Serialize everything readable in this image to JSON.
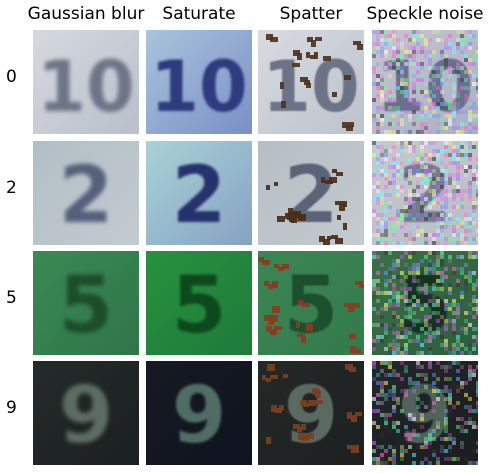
{
  "columns": [
    "Gaussian blur",
    "Saturate",
    "Spatter",
    "Speckle noise"
  ],
  "rows": [
    {
      "label": "0",
      "digit": "10",
      "cells": [
        {
          "bg": "#b9c0cb",
          "bg2": "#d5d9df",
          "fg": "#6e7488",
          "blur": 2.2,
          "speckle": 0,
          "spatter": false
        },
        {
          "bg": "#7b8fc6",
          "bg2": "#a9c4dc",
          "fg": "#2f3a7e",
          "blur": 1.4,
          "speckle": 0,
          "spatter": false
        },
        {
          "bg": "#bcc2cc",
          "bg2": "#d8dbe0",
          "fg": "#6d7387",
          "blur": 0.9,
          "speckle": 0,
          "spatter": true,
          "spatterColor": "#4e3320"
        },
        {
          "bg": "#aab0c4",
          "bg2": "#c9c3d4",
          "fg": "#6a6f8c",
          "blur": 0.8,
          "speckle": 0.5,
          "spatter": false
        }
      ]
    },
    {
      "label": "2",
      "digit": "2",
      "cells": [
        {
          "bg": "#c3cbd0",
          "bg2": "#b2bec6",
          "fg": "#55607a",
          "blur": 2.2,
          "speckle": 0,
          "spatter": false
        },
        {
          "bg": "#86a2c4",
          "bg2": "#a9d2d6",
          "fg": "#25326d",
          "blur": 1.4,
          "speckle": 0,
          "spatter": false
        },
        {
          "bg": "#c4cacf",
          "bg2": "#b6bec4",
          "fg": "#5a6478",
          "blur": 0.9,
          "speckle": 0,
          "spatter": true,
          "spatterColor": "#4a2e18"
        },
        {
          "bg": "#b9bdc8",
          "bg2": "#c9c6d3",
          "fg": "#757a92",
          "blur": 0.8,
          "speckle": 0.55,
          "spatter": false
        }
      ]
    },
    {
      "label": "5",
      "digit": "5",
      "cells": [
        {
          "bg": "#2f7548",
          "bg2": "#3a8a55",
          "fg": "#1c4d2c",
          "blur": 2.0,
          "speckle": 0,
          "spatter": false
        },
        {
          "bg": "#1f7a3a",
          "bg2": "#27913f",
          "fg": "#0e4a1f",
          "blur": 1.3,
          "speckle": 0,
          "spatter": false
        },
        {
          "bg": "#347a4c",
          "bg2": "#3b8654",
          "fg": "#1d4f2f",
          "blur": 0.9,
          "speckle": 0,
          "spatter": true,
          "spatterColor": "#8a3b22"
        },
        {
          "bg": "#2e5c3c",
          "bg2": "#3a7048",
          "fg": "#14301c",
          "blur": 0.8,
          "speckle": 0.45,
          "spatter": false
        }
      ]
    },
    {
      "label": "9",
      "digit": "9",
      "cells": [
        {
          "bg": "#1b1f1f",
          "bg2": "#252b2a",
          "fg": "#5b6d62",
          "blur": 2.0,
          "speckle": 0,
          "spatter": false
        },
        {
          "bg": "#0f1320",
          "bg2": "#151a22",
          "fg": "#4f6d64",
          "blur": 1.3,
          "speckle": 0,
          "spatter": false
        },
        {
          "bg": "#1c2020",
          "bg2": "#242928",
          "fg": "#5a6b62",
          "blur": 0.9,
          "speckle": 0,
          "spatter": true,
          "spatterColor": "#7a4020"
        },
        {
          "bg": "#1a1d1d",
          "bg2": "#22272a",
          "fg": "#53635c",
          "blur": 0.8,
          "speckle": 0.35,
          "spatter": false
        }
      ]
    }
  ]
}
